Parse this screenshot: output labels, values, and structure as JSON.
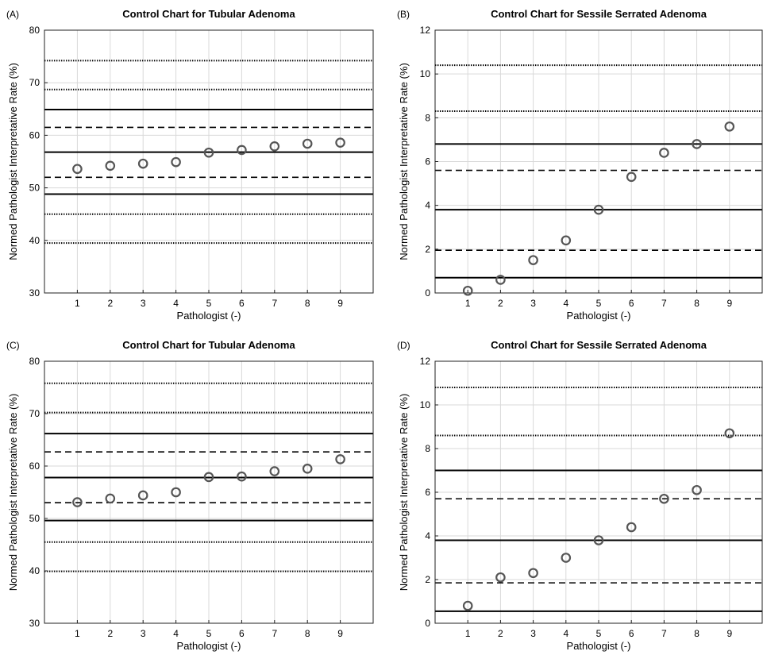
{
  "chart_data": [
    {
      "type": "scatter",
      "panel_label": "(A)",
      "title": "Control Chart for Tubular Adenoma",
      "xlabel": "Pathologist (-)",
      "ylabel": "Normed Pathologist Interpretative Rate (%)",
      "xlim": [
        0,
        10
      ],
      "ylim": [
        30,
        80
      ],
      "xticks": [
        1,
        2,
        3,
        4,
        5,
        6,
        7,
        8,
        9
      ],
      "yticks": [
        30,
        40,
        50,
        60,
        70,
        80
      ],
      "grid": true,
      "x": [
        1,
        2,
        3,
        4,
        5,
        6,
        7,
        8,
        9
      ],
      "y": [
        53.6,
        54.2,
        54.6,
        54.9,
        56.7,
        57.2,
        57.9,
        58.4,
        58.6
      ],
      "reference_lines": [
        {
          "style": "dotted",
          "y": 74.2
        },
        {
          "style": "dotted",
          "y": 68.7
        },
        {
          "style": "solid",
          "y": 64.9
        },
        {
          "style": "dashed",
          "y": 61.5
        },
        {
          "style": "solid",
          "y": 56.8
        },
        {
          "style": "dashed",
          "y": 52.0
        },
        {
          "style": "solid",
          "y": 48.8
        },
        {
          "style": "dotted",
          "y": 45.0
        },
        {
          "style": "dotted",
          "y": 39.5
        }
      ]
    },
    {
      "type": "scatter",
      "panel_label": "(B)",
      "title": "Control Chart for Sessile Serrated Adenoma",
      "xlabel": "Pathologist (-)",
      "ylabel": "Normed Pathologist Interpretative Rate (%)",
      "xlim": [
        0,
        10
      ],
      "ylim": [
        0,
        12
      ],
      "xticks": [
        1,
        2,
        3,
        4,
        5,
        6,
        7,
        8,
        9
      ],
      "yticks": [
        0,
        2,
        4,
        6,
        8,
        10,
        12
      ],
      "grid": true,
      "x": [
        1,
        2,
        3,
        4,
        5,
        6,
        7,
        8,
        9
      ],
      "y": [
        0.1,
        0.6,
        1.5,
        2.4,
        3.8,
        5.3,
        6.4,
        6.8,
        7.6
      ],
      "reference_lines": [
        {
          "style": "dotted",
          "y": 10.4
        },
        {
          "style": "dotted",
          "y": 8.3
        },
        {
          "style": "solid",
          "y": 6.8
        },
        {
          "style": "dashed",
          "y": 5.6
        },
        {
          "style": "solid",
          "y": 3.8
        },
        {
          "style": "dashed",
          "y": 1.95
        },
        {
          "style": "solid",
          "y": 0.7
        }
      ]
    },
    {
      "type": "scatter",
      "panel_label": "(C)",
      "title": "Control Chart for Tubular Adenoma",
      "xlabel": "Pathologist (-)",
      "ylabel": "Normed Pathologist Interpretative Rate (%)",
      "xlim": [
        0,
        10
      ],
      "ylim": [
        30,
        80
      ],
      "xticks": [
        1,
        2,
        3,
        4,
        5,
        6,
        7,
        8,
        9
      ],
      "yticks": [
        30,
        40,
        50,
        60,
        70,
        80
      ],
      "grid": true,
      "x": [
        1,
        2,
        3,
        4,
        5,
        6,
        7,
        8,
        9
      ],
      "y": [
        53.1,
        53.8,
        54.4,
        55.0,
        57.9,
        58.0,
        59.0,
        59.5,
        61.3
      ],
      "reference_lines": [
        {
          "style": "dotted",
          "y": 75.8
        },
        {
          "style": "dotted",
          "y": 70.2
        },
        {
          "style": "solid",
          "y": 66.2
        },
        {
          "style": "dashed",
          "y": 62.7
        },
        {
          "style": "solid",
          "y": 57.8
        },
        {
          "style": "dashed",
          "y": 53.0
        },
        {
          "style": "solid",
          "y": 49.6
        },
        {
          "style": "dotted",
          "y": 45.5
        },
        {
          "style": "dotted",
          "y": 39.9
        }
      ]
    },
    {
      "type": "scatter",
      "panel_label": "(D)",
      "title": "Control Chart for Sessile Serrated Adenoma",
      "xlabel": "Pathologist (-)",
      "ylabel": "Normed Pathologist Interpretative Rate (%)",
      "xlim": [
        0,
        10
      ],
      "ylim": [
        0,
        12
      ],
      "xticks": [
        1,
        2,
        3,
        4,
        5,
        6,
        7,
        8,
        9
      ],
      "yticks": [
        0,
        2,
        4,
        6,
        8,
        10,
        12
      ],
      "grid": true,
      "x": [
        1,
        2,
        3,
        4,
        5,
        6,
        7,
        8,
        9
      ],
      "y": [
        0.8,
        2.1,
        2.3,
        3.0,
        3.8,
        4.4,
        5.7,
        6.1,
        8.7
      ],
      "reference_lines": [
        {
          "style": "dotted",
          "y": 10.8
        },
        {
          "style": "dotted",
          "y": 8.6
        },
        {
          "style": "solid",
          "y": 7.0
        },
        {
          "style": "dashed",
          "y": 5.7
        },
        {
          "style": "solid",
          "y": 3.8
        },
        {
          "style": "dashed",
          "y": 1.85
        },
        {
          "style": "solid",
          "y": 0.55
        }
      ]
    }
  ]
}
